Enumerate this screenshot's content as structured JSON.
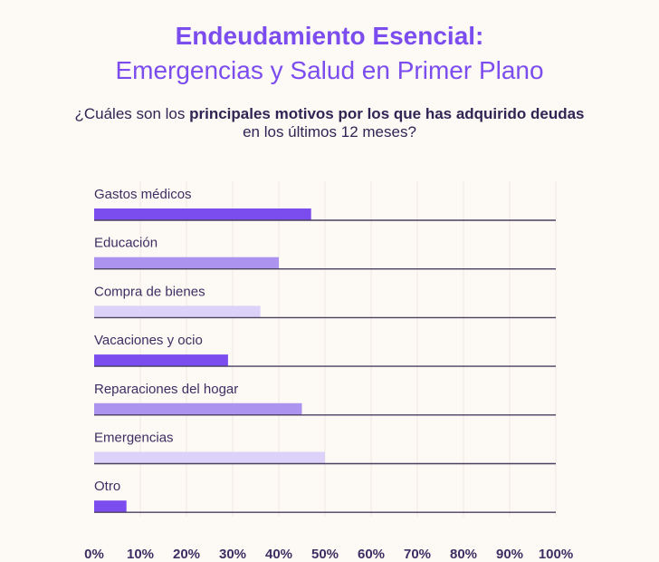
{
  "header": {
    "title_line1": "Endeudamiento Esencial:",
    "title_line2": "Emergencias y Salud en Primer Plano"
  },
  "question": {
    "prefix": "¿Cuáles son los ",
    "bold": "principales motivos por los que has adquirido deudas",
    "line2": "en los últimos 12 meses?"
  },
  "colors": {
    "dark": "#7c4dee",
    "medium": "#ac93f0",
    "light": "#dcd1f8",
    "baseline": "#4a4060",
    "grid": "#f0e9e1",
    "label": "#3d2f63"
  },
  "chart_data": {
    "type": "bar",
    "orientation": "horizontal",
    "title": "Endeudamiento Esencial: Emergencias y Salud en Primer Plano",
    "subtitle": "¿Cuáles son los principales motivos por los que has adquirido deudas en los últimos 12 meses?",
    "categories": [
      "Gastos médicos",
      "Educación",
      "Compra de bienes",
      "Vacaciones y ocio",
      "Reparaciones del hogar",
      "Emergencias",
      "Otro"
    ],
    "values": [
      47,
      40,
      36,
      29,
      45,
      50,
      7
    ],
    "bar_color_keys": [
      "dark",
      "medium",
      "light",
      "dark",
      "medium",
      "light",
      "dark"
    ],
    "xlim": [
      0,
      100
    ],
    "x_ticks": [
      "0%",
      "10%",
      "20%",
      "30%",
      "40%",
      "50%",
      "60%",
      "70%",
      "80%",
      "90%",
      "100%"
    ],
    "xlabel": "",
    "ylabel": "",
    "grid": true
  }
}
